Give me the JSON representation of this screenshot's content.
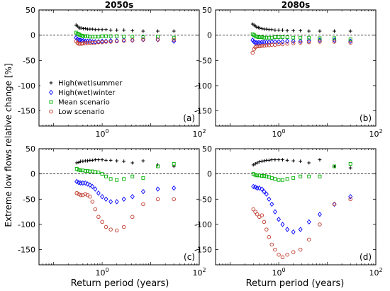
{
  "ylabel": "Extreme low flows relative change [%]",
  "xlabel": "Return period (years)",
  "legend": {
    "placement": "left-middle of panel (a)",
    "entries": [
      {
        "name": "High(wet)summer",
        "marker": "plus",
        "color": "#000000"
      },
      {
        "name": "High(wet)winter",
        "marker": "diamond",
        "color": "#0000ff"
      },
      {
        "name": "Mean scenario",
        "marker": "square",
        "color": "#00b000"
      },
      {
        "name": "Low scenario",
        "marker": "circle",
        "color": "#c0392b"
      }
    ]
  },
  "chart_data": [
    {
      "type": "scatter",
      "panel": "a",
      "title": "2050s",
      "label": "(a)",
      "xscale": "log",
      "xlim": [
        0.05,
        100
      ],
      "ylim": [
        -180,
        50
      ],
      "yticks": [
        50,
        0,
        -50,
        -100,
        -150
      ],
      "xticks": [
        1,
        100
      ],
      "xtick_labels": [
        "10^0",
        "10^2"
      ],
      "zero_line": true,
      "series": [
        {
          "name": "High(wet)summer",
          "marker": "plus",
          "color": "#000000",
          "x": [
            0.29,
            0.31,
            0.33,
            0.35,
            0.38,
            0.41,
            0.45,
            0.5,
            0.56,
            0.63,
            0.72,
            0.84,
            1.0,
            1.2,
            1.5,
            2.0,
            2.8,
            4.2,
            7.0,
            14,
            30
          ],
          "y": [
            20,
            18,
            15,
            14,
            14,
            13,
            13,
            12,
            12,
            12,
            11,
            11,
            11,
            11,
            10,
            10,
            10,
            9,
            8,
            8,
            8
          ]
        },
        {
          "name": "High(wet)winter",
          "marker": "diamond",
          "color": "#0000ff",
          "x": [
            0.29,
            0.31,
            0.33,
            0.35,
            0.38,
            0.41,
            0.45,
            0.5,
            0.56,
            0.63,
            0.72,
            0.84,
            1.0,
            1.2,
            1.5,
            2.0,
            2.8,
            4.2,
            7.0,
            14,
            30
          ],
          "y": [
            -5,
            -8,
            -10,
            -10,
            -11,
            -11,
            -12,
            -12,
            -12,
            -13,
            -13,
            -13,
            -12,
            -12,
            -11,
            -11,
            -10,
            -10,
            -9,
            -9,
            -12
          ]
        },
        {
          "name": "Mean scenario",
          "marker": "square",
          "color": "#00b000",
          "x": [
            0.29,
            0.31,
            0.33,
            0.35,
            0.38,
            0.41,
            0.45,
            0.5,
            0.56,
            0.63,
            0.72,
            0.84,
            1.0,
            1.2,
            1.5,
            2.0,
            2.8,
            4.2,
            7.0,
            14,
            30
          ],
          "y": [
            5,
            3,
            2,
            0,
            -1,
            -2,
            -2,
            -2,
            -3,
            -3,
            -3,
            -3,
            -2,
            -2,
            -2,
            -2,
            -3,
            -3,
            -4,
            -3,
            -5
          ]
        },
        {
          "name": "Low scenario",
          "marker": "circle",
          "color": "#c0392b",
          "x": [
            0.29,
            0.31,
            0.33,
            0.35,
            0.38,
            0.41,
            0.45,
            0.5,
            0.56,
            0.63,
            0.72,
            0.84,
            1.0,
            1.2,
            1.5,
            2.0,
            2.8,
            4.2,
            7.0,
            14,
            30
          ],
          "y": [
            -12,
            -15,
            -17,
            -17,
            -17,
            -16,
            -16,
            -16,
            -15,
            -15,
            -15,
            -14,
            -14,
            -13,
            -13,
            -12,
            -11,
            -10,
            -9,
            -9,
            -9
          ]
        }
      ]
    },
    {
      "type": "scatter",
      "panel": "b",
      "title": "2080s",
      "label": "(b)",
      "xscale": "log",
      "xlim": [
        0.05,
        100
      ],
      "ylim": [
        -180,
        50
      ],
      "yticks": [
        50,
        0,
        -50,
        -100,
        -150
      ],
      "xticks": [
        1,
        100
      ],
      "xtick_labels": [
        "10^0",
        "10^2"
      ],
      "zero_line": true,
      "series": [
        {
          "name": "High(wet)summer",
          "marker": "plus",
          "color": "#000000",
          "x": [
            0.29,
            0.31,
            0.33,
            0.35,
            0.38,
            0.41,
            0.45,
            0.5,
            0.56,
            0.63,
            0.72,
            0.84,
            1.0,
            1.2,
            1.5,
            2.0,
            2.8,
            4.2,
            7.0,
            14,
            30
          ],
          "y": [
            22,
            20,
            18,
            16,
            15,
            14,
            13,
            12,
            12,
            11,
            11,
            10,
            10,
            10,
            9,
            9,
            9,
            8,
            8,
            8,
            8
          ]
        },
        {
          "name": "High(wet)winter",
          "marker": "diamond",
          "color": "#0000ff",
          "x": [
            0.29,
            0.31,
            0.33,
            0.35,
            0.38,
            0.41,
            0.45,
            0.5,
            0.56,
            0.63,
            0.72,
            0.84,
            1.0,
            1.2,
            1.5,
            2.0,
            2.8,
            4.2,
            7.0,
            14,
            30
          ],
          "y": [
            -10,
            -13,
            -15,
            -15,
            -15,
            -15,
            -14,
            -14,
            -14,
            -14,
            -13,
            -13,
            -13,
            -13,
            -12,
            -12,
            -12,
            -11,
            -10,
            -10,
            -12
          ]
        },
        {
          "name": "Mean scenario",
          "marker": "square",
          "color": "#00b000",
          "x": [
            0.29,
            0.31,
            0.33,
            0.35,
            0.38,
            0.41,
            0.45,
            0.5,
            0.56,
            0.63,
            0.72,
            0.84,
            1.0,
            1.2,
            1.5,
            2.0,
            2.8,
            4.2,
            7.0,
            14,
            30
          ],
          "y": [
            2,
            0,
            -2,
            -3,
            -4,
            -4,
            -4,
            -5,
            -5,
            -5,
            -5,
            -4,
            -4,
            -4,
            -4,
            -5,
            -5,
            -5,
            -6,
            -6,
            -8
          ]
        },
        {
          "name": "Low scenario",
          "marker": "circle",
          "color": "#c0392b",
          "x": [
            0.29,
            0.31,
            0.33,
            0.35,
            0.38,
            0.41,
            0.45,
            0.5,
            0.56,
            0.63,
            0.72,
            0.84,
            1.0,
            1.2,
            1.5,
            2.0,
            2.8,
            4.2,
            7.0,
            14,
            30
          ],
          "y": [
            -35,
            -28,
            -24,
            -22,
            -22,
            -22,
            -21,
            -21,
            -20,
            -20,
            -19,
            -19,
            -18,
            -18,
            -17,
            -16,
            -15,
            -14,
            -13,
            -13,
            -15
          ]
        }
      ]
    },
    {
      "type": "scatter",
      "panel": "c",
      "title": "",
      "label": "(c)",
      "xscale": "log",
      "xlim": [
        0.05,
        100
      ],
      "ylim": [
        -180,
        50
      ],
      "yticks": [
        50,
        0,
        -50,
        -100,
        -150
      ],
      "xticks": [
        1,
        100
      ],
      "xtick_labels": [
        "10^0",
        "10^2"
      ],
      "zero_line": true,
      "series": [
        {
          "name": "High(wet)summer",
          "marker": "plus",
          "color": "#000000",
          "x": [
            0.3,
            0.33,
            0.36,
            0.4,
            0.45,
            0.5,
            0.56,
            0.63,
            0.72,
            0.84,
            1.0,
            1.2,
            1.5,
            2.0,
            2.8,
            4.2,
            7.0,
            14,
            30
          ],
          "y": [
            22,
            23,
            25,
            25,
            26,
            26,
            27,
            27,
            28,
            28,
            28,
            27,
            27,
            26,
            25,
            22,
            26,
            18,
            15
          ]
        },
        {
          "name": "High(wet)winter",
          "marker": "diamond",
          "color": "#0000ff",
          "x": [
            0.3,
            0.33,
            0.36,
            0.4,
            0.45,
            0.5,
            0.56,
            0.63,
            0.72,
            0.84,
            1.0,
            1.2,
            1.5,
            2.0,
            2.8,
            4.2,
            7.0,
            14,
            30
          ],
          "y": [
            -15,
            -17,
            -18,
            -18,
            -18,
            -20,
            -22,
            -25,
            -30,
            -38,
            -45,
            -50,
            -55,
            -55,
            -50,
            -45,
            -35,
            -30,
            -28
          ]
        },
        {
          "name": "Mean scenario",
          "marker": "square",
          "color": "#00b000",
          "x": [
            0.3,
            0.33,
            0.36,
            0.4,
            0.45,
            0.5,
            0.56,
            0.63,
            0.72,
            0.84,
            1.0,
            1.2,
            1.5,
            2.0,
            2.8,
            4.2,
            7.0,
            14,
            30
          ],
          "y": [
            10,
            8,
            7,
            7,
            6,
            6,
            5,
            5,
            4,
            3,
            0,
            -5,
            -10,
            -12,
            -10,
            -5,
            -8,
            15,
            20
          ]
        },
        {
          "name": "Low scenario",
          "marker": "circle",
          "color": "#c0392b",
          "x": [
            0.3,
            0.33,
            0.36,
            0.4,
            0.45,
            0.5,
            0.56,
            0.63,
            0.72,
            0.84,
            1.0,
            1.2,
            1.5,
            2.0,
            2.8,
            4.2,
            7.0,
            14,
            30
          ],
          "y": [
            -38,
            -40,
            -42,
            -42,
            -40,
            -42,
            -45,
            -55,
            -70,
            -85,
            -95,
            -105,
            -110,
            -112,
            -105,
            -85,
            -60,
            -50,
            -50
          ]
        }
      ]
    },
    {
      "type": "scatter",
      "panel": "d",
      "title": "",
      "label": "(d)",
      "xscale": "log",
      "xlim": [
        0.05,
        100
      ],
      "ylim": [
        -180,
        50
      ],
      "yticks": [
        50,
        0,
        -50,
        -100,
        -150
      ],
      "xticks": [
        1,
        100
      ],
      "xtick_labels": [
        "10^0",
        "10^2"
      ],
      "zero_line": true,
      "series": [
        {
          "name": "High(wet)summer",
          "marker": "plus",
          "color": "#000000",
          "x": [
            0.3,
            0.33,
            0.36,
            0.4,
            0.45,
            0.5,
            0.56,
            0.63,
            0.72,
            0.84,
            1.0,
            1.2,
            1.5,
            2.0,
            2.8,
            4.2,
            7.0,
            14,
            30
          ],
          "y": [
            18,
            20,
            22,
            24,
            25,
            26,
            27,
            27,
            28,
            28,
            28,
            28,
            27,
            26,
            25,
            22,
            28,
            15,
            12
          ]
        },
        {
          "name": "High(wet)winter",
          "marker": "diamond",
          "color": "#0000ff",
          "x": [
            0.3,
            0.33,
            0.36,
            0.4,
            0.45,
            0.5,
            0.56,
            0.63,
            0.72,
            0.84,
            1.0,
            1.2,
            1.5,
            2.0,
            2.8,
            4.2,
            7.0,
            14,
            30
          ],
          "y": [
            -25,
            -26,
            -28,
            -28,
            -30,
            -35,
            -40,
            -50,
            -60,
            -75,
            -90,
            -100,
            -110,
            -115,
            -110,
            -95,
            -80,
            -60,
            -45
          ]
        },
        {
          "name": "Mean scenario",
          "marker": "square",
          "color": "#00b000",
          "x": [
            0.3,
            0.33,
            0.36,
            0.4,
            0.45,
            0.5,
            0.56,
            0.63,
            0.72,
            0.84,
            1.0,
            1.2,
            1.5,
            2.0,
            2.8,
            4.2,
            7.0,
            14,
            30
          ],
          "y": [
            0,
            -2,
            -3,
            -3,
            -4,
            -4,
            -5,
            -6,
            -8,
            -10,
            -12,
            -12,
            -10,
            -8,
            -5,
            -5,
            -5,
            15,
            20
          ]
        },
        {
          "name": "Low scenario",
          "marker": "circle",
          "color": "#c0392b",
          "x": [
            0.3,
            0.33,
            0.36,
            0.4,
            0.45,
            0.5,
            0.56,
            0.63,
            0.72,
            0.84,
            1.0,
            1.2,
            1.5,
            2.0,
            2.8,
            4.2,
            7.0,
            14,
            30
          ],
          "y": [
            -70,
            -75,
            -80,
            -85,
            -82,
            -95,
            -110,
            -125,
            -140,
            -150,
            -160,
            -165,
            -160,
            -155,
            -150,
            -130,
            -100,
            -60,
            -50
          ]
        }
      ]
    }
  ]
}
